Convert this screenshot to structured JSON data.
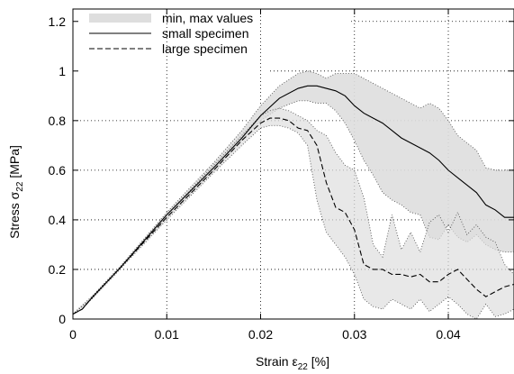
{
  "chart_data": {
    "type": "line",
    "title": "",
    "xlabel": "Strain ε",
    "xlabel_sub": "22",
    "xlabel_unit": " [%]",
    "ylabel": "Stress σ",
    "ylabel_sub": "22",
    "ylabel_unit": " [MPa]",
    "xlim": [
      0,
      0.047
    ],
    "ylim": [
      0,
      1.25
    ],
    "x_ticks": [
      0,
      0.01,
      0.02,
      0.03,
      0.04
    ],
    "x_tick_labels": [
      "0",
      "0.01",
      "0.02",
      "0.03",
      "0.04"
    ],
    "y_ticks": [
      0,
      0.2,
      0.4,
      0.6,
      0.8,
      1,
      1.2
    ],
    "y_tick_labels": [
      "0",
      "0.2",
      "0.4",
      "0.6",
      "0.8",
      "1",
      "1.2"
    ],
    "grid": true,
    "legend_position": "top-left",
    "legend": [
      {
        "label": "min, max values",
        "style": "band"
      },
      {
        "label": "small specimen",
        "style": "solid"
      },
      {
        "label": "large specimen",
        "style": "dashed"
      }
    ],
    "colors": {
      "band_fill": "#dedede",
      "band_stroke": "#555555",
      "line": "#000000"
    },
    "bands": [
      {
        "name": "small specimen min/max",
        "x": [
          0,
          0.002,
          0.005,
          0.01,
          0.015,
          0.018,
          0.02,
          0.022,
          0.024,
          0.025,
          0.026,
          0.027,
          0.028,
          0.029,
          0.03,
          0.031,
          0.032,
          0.033,
          0.034,
          0.035,
          0.036,
          0.037,
          0.038,
          0.039,
          0.04,
          0.041,
          0.042,
          0.043,
          0.044,
          0.045,
          0.046,
          0.047
        ],
        "upper": [
          0.02,
          0.09,
          0.21,
          0.43,
          0.63,
          0.76,
          0.86,
          0.94,
          0.99,
          1.0,
          0.99,
          0.97,
          0.99,
          0.99,
          0.99,
          0.97,
          0.95,
          0.93,
          0.91,
          0.89,
          0.87,
          0.85,
          0.87,
          0.85,
          0.8,
          0.74,
          0.71,
          0.68,
          0.61,
          0.6,
          0.6,
          0.6
        ],
        "lower": [
          0.02,
          0.08,
          0.2,
          0.41,
          0.6,
          0.72,
          0.8,
          0.85,
          0.88,
          0.88,
          0.87,
          0.87,
          0.84,
          0.79,
          0.72,
          0.64,
          0.58,
          0.51,
          0.48,
          0.46,
          0.43,
          0.42,
          0.33,
          0.32,
          0.38,
          0.33,
          0.31,
          0.34,
          0.3,
          0.28,
          0.27,
          0.27
        ]
      },
      {
        "name": "large specimen min/max",
        "x": [
          0,
          0.002,
          0.005,
          0.01,
          0.015,
          0.018,
          0.02,
          0.021,
          0.022,
          0.023,
          0.024,
          0.025,
          0.026,
          0.027,
          0.028,
          0.029,
          0.03,
          0.031,
          0.032,
          0.033,
          0.034,
          0.035,
          0.036,
          0.037,
          0.038,
          0.039,
          0.04,
          0.041,
          0.042,
          0.043,
          0.044,
          0.045,
          0.046,
          0.047
        ],
        "upper": [
          0.02,
          0.09,
          0.21,
          0.42,
          0.62,
          0.74,
          0.82,
          0.84,
          0.85,
          0.84,
          0.82,
          0.8,
          0.76,
          0.74,
          0.67,
          0.62,
          0.6,
          0.49,
          0.3,
          0.25,
          0.42,
          0.28,
          0.35,
          0.27,
          0.39,
          0.42,
          0.35,
          0.43,
          0.34,
          0.38,
          0.33,
          0.31,
          0.22,
          0.18
        ],
        "lower": [
          0.02,
          0.08,
          0.2,
          0.4,
          0.59,
          0.7,
          0.77,
          0.78,
          0.78,
          0.77,
          0.75,
          0.7,
          0.48,
          0.35,
          0.3,
          0.25,
          0.18,
          0.08,
          0.05,
          0.04,
          0.08,
          0.06,
          0.04,
          0.08,
          0.03,
          0.06,
          0.09,
          0.06,
          0.02,
          0.0,
          0.06,
          0.01,
          0.02,
          0.04
        ]
      }
    ],
    "series": [
      {
        "name": "small specimen",
        "style": "solid",
        "x": [
          0,
          0.001,
          0.002,
          0.005,
          0.01,
          0.015,
          0.018,
          0.02,
          0.022,
          0.024,
          0.025,
          0.026,
          0.027,
          0.028,
          0.029,
          0.03,
          0.031,
          0.032,
          0.033,
          0.034,
          0.035,
          0.036,
          0.037,
          0.038,
          0.039,
          0.04,
          0.041,
          0.042,
          0.043,
          0.044,
          0.045,
          0.046,
          0.047
        ],
        "y": [
          0.02,
          0.04,
          0.085,
          0.205,
          0.42,
          0.61,
          0.73,
          0.82,
          0.89,
          0.93,
          0.94,
          0.94,
          0.93,
          0.92,
          0.9,
          0.86,
          0.83,
          0.81,
          0.79,
          0.76,
          0.73,
          0.71,
          0.69,
          0.67,
          0.64,
          0.6,
          0.57,
          0.54,
          0.51,
          0.46,
          0.44,
          0.41,
          0.41
        ]
      },
      {
        "name": "large specimen",
        "style": "dashed",
        "x": [
          0,
          0.001,
          0.002,
          0.005,
          0.01,
          0.015,
          0.018,
          0.02,
          0.021,
          0.022,
          0.023,
          0.024,
          0.025,
          0.026,
          0.027,
          0.028,
          0.029,
          0.03,
          0.031,
          0.032,
          0.033,
          0.034,
          0.035,
          0.036,
          0.037,
          0.038,
          0.039,
          0.04,
          0.041,
          0.042,
          0.043,
          0.044,
          0.045,
          0.046,
          0.047
        ],
        "y": [
          0.02,
          0.04,
          0.085,
          0.205,
          0.41,
          0.6,
          0.72,
          0.79,
          0.81,
          0.81,
          0.8,
          0.77,
          0.76,
          0.7,
          0.55,
          0.45,
          0.43,
          0.36,
          0.22,
          0.2,
          0.2,
          0.18,
          0.18,
          0.17,
          0.18,
          0.15,
          0.15,
          0.18,
          0.2,
          0.16,
          0.12,
          0.09,
          0.11,
          0.13,
          0.14
        ]
      }
    ]
  }
}
